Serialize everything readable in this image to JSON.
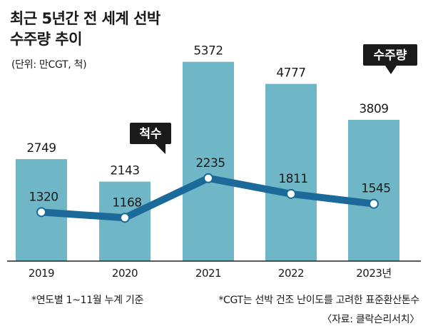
{
  "header": {
    "title_line1": "최근 5년간 전 세계 선박",
    "title_line2": "수주량 추이",
    "unit": "(단위: 만CGT, 척)"
  },
  "footer": {
    "note_left": "*연도별 1~11월 누계 기준",
    "note_right": "*CGT는 선박 건조 난이도를 고려한 표준환산톤수",
    "source": "〈자료: 클락슨리서치〉"
  },
  "colors": {
    "bar": "#6fb7c6",
    "line": "#1c6a9a",
    "marker_fill": "#ffffff",
    "callout_bg": "#1a1a1a",
    "callout_text": "#ffffff",
    "axis": "#222222"
  },
  "chart_data": {
    "type": "bar",
    "categories": [
      "2019",
      "2020",
      "2021",
      "2022",
      "2023년"
    ],
    "ylim": [
      0,
      6000
    ],
    "series": [
      {
        "name": "수주량",
        "type": "bar",
        "values": [
          2749,
          2143,
          5372,
          4777,
          3809
        ]
      },
      {
        "name": "척수",
        "type": "line",
        "values": [
          1320,
          1168,
          2235,
          1811,
          1545
        ]
      }
    ]
  }
}
